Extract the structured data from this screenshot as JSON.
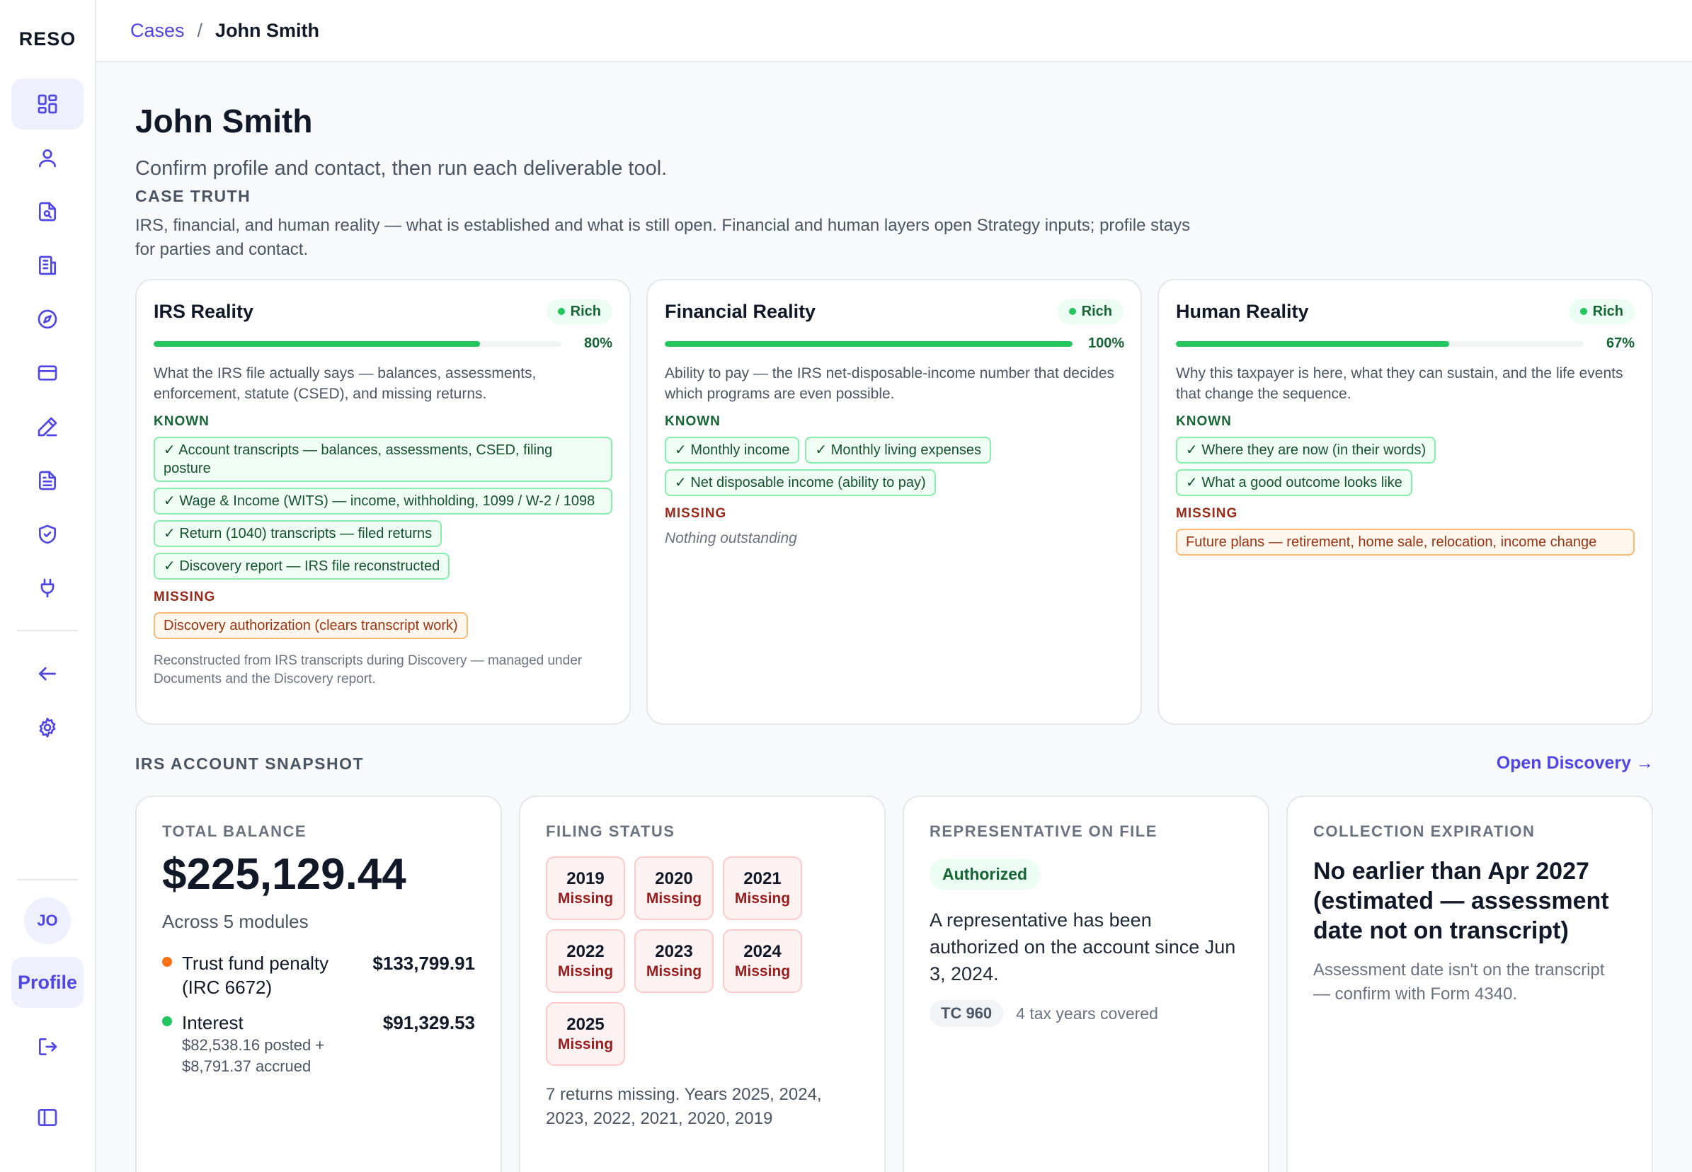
{
  "app": {
    "brand": "RESO"
  },
  "sidebar": {
    "nav": [
      {
        "icon": "dashboard-icon"
      },
      {
        "icon": "user-icon"
      },
      {
        "icon": "document-search-icon"
      },
      {
        "icon": "building-icon"
      },
      {
        "icon": "compass-icon"
      },
      {
        "icon": "credit-card-icon"
      },
      {
        "icon": "pen-icon"
      },
      {
        "icon": "file-text-icon"
      },
      {
        "icon": "shield-check-icon"
      },
      {
        "icon": "plug-icon"
      },
      {
        "icon": "arrow-left-icon"
      },
      {
        "icon": "gear-icon"
      }
    ],
    "avatar_initials": "JO",
    "profile_label": "Profile"
  },
  "breadcrumb": {
    "parent": "Cases",
    "separator": "/",
    "current": "John Smith"
  },
  "page": {
    "title": "John Smith",
    "subtitle": "Confirm profile and contact, then run each deliverable tool."
  },
  "case_truth": {
    "label": "CASE TRUTH",
    "description": "IRS, financial, and human reality — what is established and what is still open. Financial and human layers open Strategy inputs; profile stays for parties and contact.",
    "known_label": "KNOWN",
    "missing_label": "MISSING",
    "cards": [
      {
        "title": "IRS Reality",
        "badge": "Rich",
        "progress": 80,
        "progress_label": "80%",
        "description": "What the IRS file actually says — balances, assessments, enforcement, statute (CSED), and missing returns.",
        "known": [
          "✓ Account transcripts — balances, assessments, CSED, filing posture",
          "✓ Wage & Income (WITS) — income, withholding, 1099 / W-2 / 1098",
          "✓ Return (1040) transcripts — filed returns",
          "✓ Discovery report — IRS file reconstructed"
        ],
        "missing": [
          "Discovery authorization (clears transcript work)"
        ],
        "footnote": "Reconstructed from IRS transcripts during Discovery — managed under Documents and the Discovery report."
      },
      {
        "title": "Financial Reality",
        "badge": "Rich",
        "progress": 100,
        "progress_label": "100%",
        "description": "Ability to pay — the IRS net-disposable-income number that decides which programs are even possible.",
        "known": [
          "✓ Monthly income",
          "✓ Monthly living expenses",
          "✓ Net disposable income (ability to pay)"
        ],
        "missing_empty": "Nothing outstanding"
      },
      {
        "title": "Human Reality",
        "badge": "Rich",
        "progress": 67,
        "progress_label": "67%",
        "description": "Why this taxpayer is here, what they can sustain, and the life events that change the sequence.",
        "known": [
          "✓ Where they are now (in their words)",
          "✓ What a good outcome looks like"
        ],
        "missing": [
          "Future plans — retirement, home sale, relocation, income change"
        ]
      }
    ]
  },
  "snapshot": {
    "label": "IRS ACCOUNT SNAPSHOT",
    "open_link": "Open Discovery →",
    "balance": {
      "head": "TOTAL BALANCE",
      "amount": "$225,129.44",
      "sub": "Across 5 modules",
      "rows": [
        {
          "name": "Trust fund penalty (IRC 6672)",
          "amount": "$133,799.91",
          "color": "#f97316",
          "detail": ""
        },
        {
          "name": "Interest",
          "amount": "$91,329.53",
          "color": "#22c55e",
          "detail": "$82,538.16 posted + $8,791.37 accrued"
        }
      ]
    },
    "filing": {
      "head": "FILING STATUS",
      "years": [
        {
          "year": "2019",
          "status": "Missing"
        },
        {
          "year": "2020",
          "status": "Missing"
        },
        {
          "year": "2021",
          "status": "Missing"
        },
        {
          "year": "2022",
          "status": "Missing"
        },
        {
          "year": "2023",
          "status": "Missing"
        },
        {
          "year": "2024",
          "status": "Missing"
        },
        {
          "year": "2025",
          "status": "Missing"
        }
      ],
      "note": "7 returns missing. Years 2025, 2024, 2023, 2022, 2021, 2020, 2019"
    },
    "representative": {
      "head": "REPRESENTATIVE ON FILE",
      "badge": "Authorized",
      "text": "A representative has been authorized on the account since Jun 3, 2024.",
      "tc": "TC 960",
      "years": "4 tax years covered"
    },
    "csed": {
      "head": "COLLECTION EXPIRATION",
      "main": "No earlier than Apr 2027 (estimated — assessment date not on transcript)",
      "note": "Assessment date isn't on the transcript — confirm with Form 4340."
    }
  }
}
